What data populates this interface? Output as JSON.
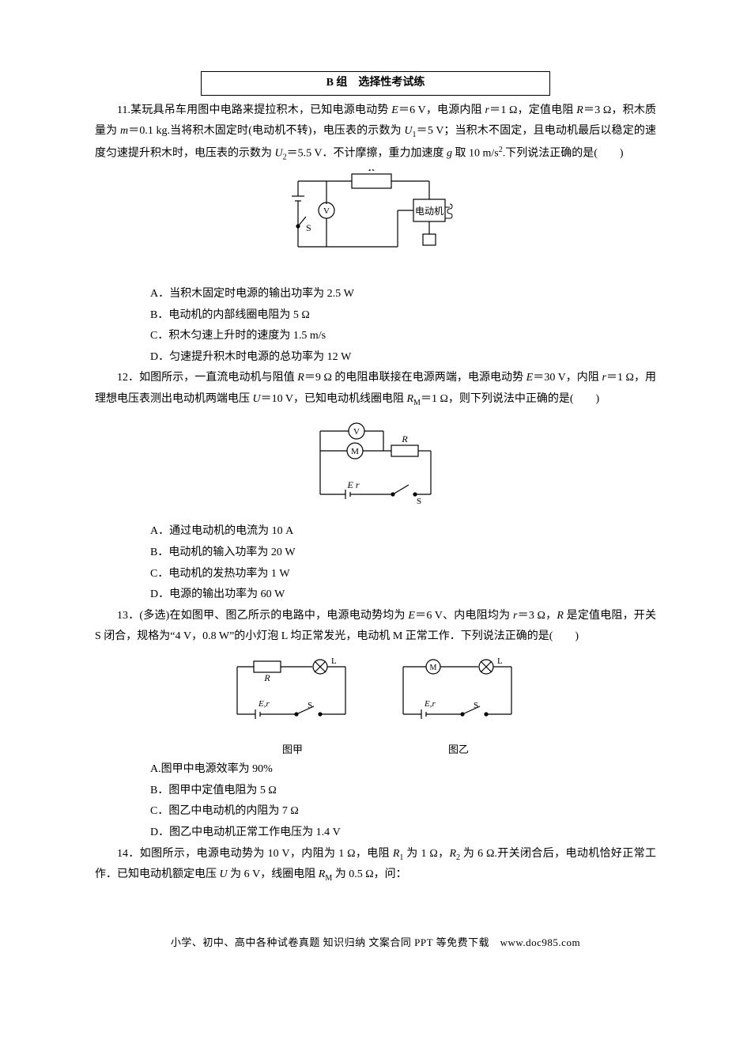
{
  "section_title": "B 组　选择性考试练",
  "q11": {
    "stem_lines": [
      "11.某玩具吊车用图中电路来提拉积木，已知电源电动势 <span class='italic'>E</span>＝6 V，电源内阻 <span class='italic'>r</span>＝1 Ω，定值电阻 <span class='italic'>R</span>＝3 Ω，积木质量为 <span class='italic'>m</span>＝0.1 kg.当将积木固定时(电动机不转)，电压表的示数为 <span class='italic'>U</span><sub>1</sub>＝5 V；当积木不固定，且电动机最后以稳定的速度匀速提升积木时，电压表的示数为 <span class='italic'>U</span><sub>2</sub>＝5.5 V．不计摩擦，重力加速度 <span class='italic'>g</span> 取 10 m/s<sup>2</sup>.下列说法正确的是(　　)"
    ],
    "opts": [
      "A．当积木固定时电源的输出功率为 2.5 W",
      "B．电动机的内部线圈电阻为 5 Ω",
      "C．积木匀速上升时的速度为 1.5 m/s",
      "D．匀速提升积木时电源的总功率为 12 W"
    ],
    "fig": {
      "labels": {
        "R": "R",
        "S": "S",
        "V": "V",
        "motor": "电动机"
      },
      "stroke": "#000"
    }
  },
  "q12": {
    "stem_lines": [
      "12．如图所示，一直流电动机与阻值 <span class='italic'>R</span>＝9 Ω 的电阻串联接在电源两端，电源电动势 <span class='italic'>E</span>＝30 V，内阻 <span class='italic'>r</span>＝1 Ω，用理想电压表测出电动机两端电压 <span class='italic'>U</span>＝10 V，已知电动机线圈电阻 <span class='italic'>R</span><sub>M</sub>＝1 Ω，则下列说法中正确的是(　　)"
    ],
    "opts": [
      "A．通过电动机的电流为 10 A",
      "B．电动机的输入功率为 20 W",
      "C．电动机的发热功率为 1 W",
      "D．电源的输出功率为 60 W"
    ],
    "fig": {
      "labels": {
        "V": "V",
        "M": "M",
        "R": "R",
        "Er": "E  r",
        "S": "S"
      },
      "stroke": "#000"
    }
  },
  "q13": {
    "stem_lines": [
      "13．(多选)在如图甲、图乙所示的电路中，电源电动势均为 <span class='italic'>E</span>＝6 V、内电阻均为 <span class='italic'>r</span>＝3 Ω，<span class='italic'>R</span> 是定值电阻，开关 S 闭合，规格为“4 V，0.8 W”的小灯泡 L 均正常发光，电动机 M 正常工作．下列说法正确的是(　　)"
    ],
    "opts": [
      "A.图甲中电源效率为 90%",
      "B．图甲中定值电阻为 5 Ω",
      "C．图乙中电动机的内阻为 7 Ω",
      "D．图乙中电动机正常工作电压为 1.4 V"
    ],
    "fig": {
      "labels": {
        "R": "R",
        "L": "L",
        "M": "M",
        "Er": "E,r",
        "S": "S",
        "cap1": "图甲",
        "cap2": "图乙"
      },
      "stroke": "#000"
    }
  },
  "q14": {
    "stem_lines": [
      "14．如图所示，电源电动势为 10 V，内阻为 1 Ω，电阻 <span class='italic'>R</span><sub>1</sub> 为 1 Ω，<span class='italic'>R</span><sub>2</sub> 为 6 Ω.开关闭合后，电动机恰好正常工作．已知电动机额定电压 <span class='italic'>U</span> 为 6 V，线圈电阻 <span class='italic'>R</span><sub>M</sub> 为 0.5 Ω，问："
    ]
  },
  "footer": "小学、初中、高中各种试卷真题  知识归纳  文案合同  PPT 等免费下载　www.doc985.com"
}
